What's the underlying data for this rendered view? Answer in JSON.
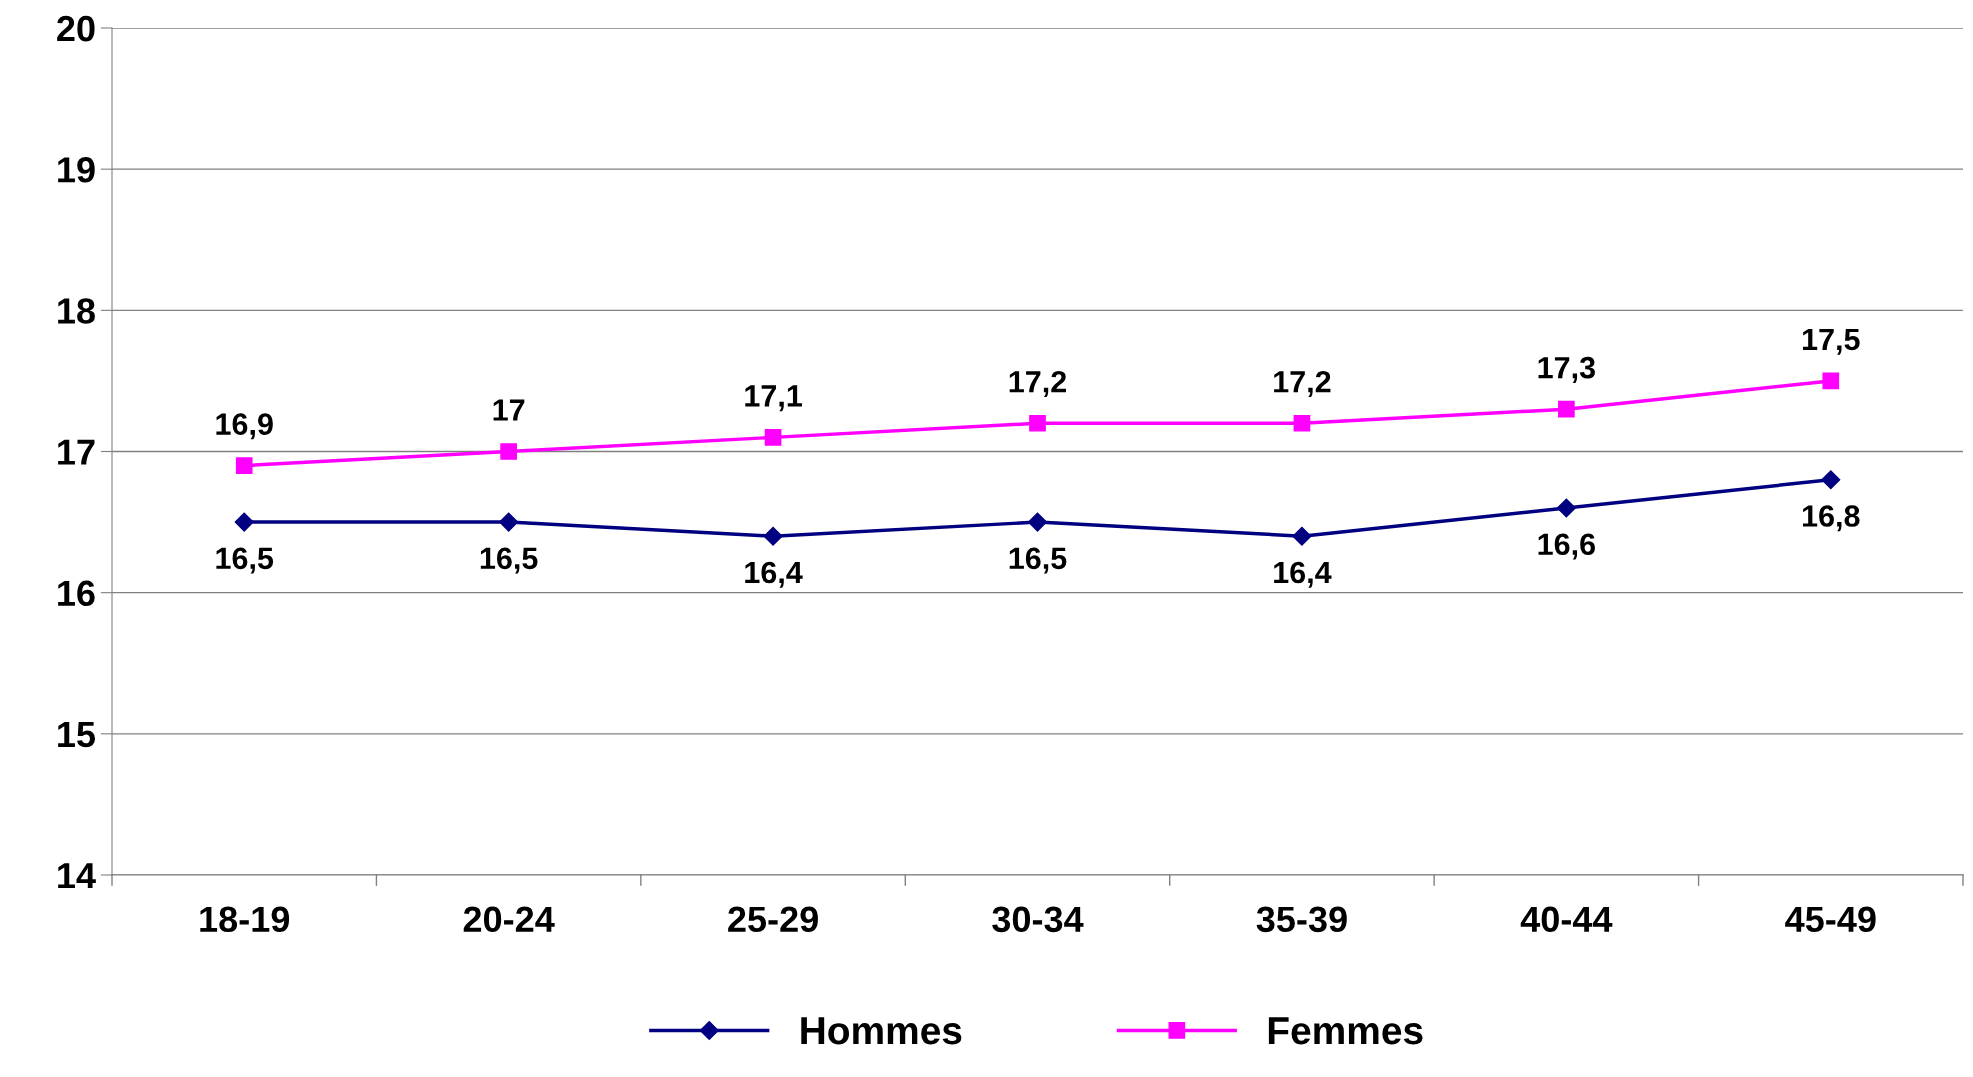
{
  "chart_data": {
    "type": "line",
    "categories": [
      "18-19",
      "20-24",
      "25-29",
      "30-34",
      "35-39",
      "40-44",
      "45-49"
    ],
    "series": [
      {
        "name": "Hommes",
        "color": "#000080",
        "marker": "diamond",
        "values": [
          16.5,
          16.5,
          16.4,
          16.5,
          16.4,
          16.6,
          16.8
        ],
        "value_labels": [
          "16,5",
          "16,5",
          "16,4",
          "16,5",
          "16,4",
          "16,6",
          "16,8"
        ]
      },
      {
        "name": "Femmes",
        "color": "#ff00ff",
        "marker": "square",
        "values": [
          16.9,
          17,
          17.1,
          17.2,
          17.2,
          17.3,
          17.5
        ],
        "value_labels": [
          "16,9",
          "17",
          "17,1",
          "17,2",
          "17,2",
          "17,3",
          "17,5"
        ]
      }
    ],
    "ylim": [
      14,
      20
    ],
    "yticks": [
      14,
      15,
      16,
      17,
      18,
      19,
      20
    ],
    "grid": "y",
    "legend": "bottom",
    "line_style": "solid"
  }
}
